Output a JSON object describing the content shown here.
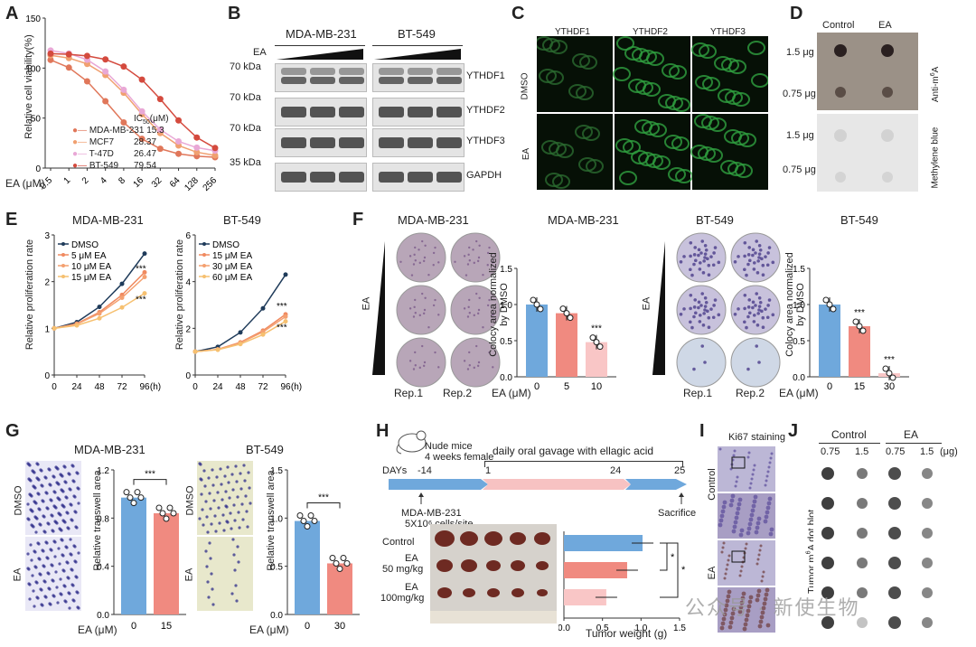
{
  "panels": {
    "A": {
      "label": "A",
      "ylabel": "Relative cell viability(%)",
      "xlabel": "EA (μM)",
      "xticks": [
        "0.5",
        "1",
        "2",
        "4",
        "8",
        "16",
        "32",
        "64",
        "128",
        "256"
      ],
      "yticks": [
        "0",
        "50",
        "100",
        "150"
      ],
      "ic50_header": "IC50(μM)",
      "legend": [
        {
          "name": "MDA-MB-231",
          "value": "15.3",
          "color": "#e0775a"
        },
        {
          "name": "MCF7",
          "value": "28.37",
          "color": "#f0a070"
        },
        {
          "name": "T-47D",
          "value": "26.47",
          "color": "#e9a8d6"
        },
        {
          "name": "BT-549",
          "value": "79.54",
          "color": "#d44a3e"
        }
      ]
    },
    "B": {
      "label": "B",
      "cell_lines": [
        "MDA-MB-231",
        "BT-549"
      ],
      "ea_label": "EA",
      "markers": [
        "70 kDa",
        "70 kDa",
        "70 kDa",
        "35 kDa"
      ],
      "proteins": [
        "YTHDF1",
        "YTHDF2",
        "YTHDF3",
        "GAPDH"
      ]
    },
    "C": {
      "label": "C",
      "columns": [
        "YTHDF1",
        "YTHDF2",
        "YTHDF3"
      ],
      "rows": [
        "DMSO",
        "EA"
      ]
    },
    "D": {
      "label": "D",
      "columns": [
        "Control",
        "EA"
      ],
      "amounts": [
        "1.5 μg",
        "0.75 μg",
        "1.5 μg",
        "0.75 μg"
      ],
      "side_labels": [
        "Anti-m6A",
        "Methylene blue"
      ]
    },
    "E": {
      "label": "E",
      "ylabel": "Relative proliferation rate",
      "xticks": [
        "0",
        "24",
        "48",
        "72",
        "96"
      ],
      "xunit": "(h)",
      "sig": "***",
      "charts": [
        {
          "title": "MDA-MB-231",
          "yticks": [
            "0",
            "1",
            "2",
            "3"
          ],
          "legend": [
            "DMSO",
            "5 μM EA",
            "10 μM EA",
            "15 μM EA"
          ]
        },
        {
          "title": "BT-549",
          "yticks": [
            "0",
            "2",
            "4",
            "6"
          ],
          "legend": [
            "DMSO",
            "15 μM EA",
            "30 μM EA",
            "60 μM EA"
          ]
        }
      ]
    },
    "F": {
      "label": "F",
      "titles": [
        "MDA-MB-231",
        "MDA-MB-231",
        "BT-549",
        "BT-549"
      ],
      "ea_label": "EA",
      "reps": [
        "Rep.1",
        "Rep.2"
      ],
      "ylabel": "Colocy area normalized by DMSO",
      "xlabel": "EA (μM)",
      "yticks": [
        "0.0",
        "0.5",
        "1.0",
        "1.5"
      ],
      "sig": "***",
      "bars_left": {
        "doses": [
          "0",
          "5",
          "10"
        ],
        "values": [
          1.0,
          0.88,
          0.48
        ]
      },
      "bars_right": {
        "doses": [
          "0",
          "15",
          "30"
        ],
        "values": [
          1.0,
          0.7,
          0.05
        ]
      }
    },
    "G": {
      "label": "G",
      "titles": [
        "MDA-MB-231",
        "BT-549"
      ],
      "rows": [
        "DMSO",
        "EA"
      ],
      "ylabel": "Relative transwell area",
      "xlabel": "EA (μM)",
      "sig": "***",
      "left": {
        "doses": [
          "0",
          "15"
        ],
        "values": [
          0.97,
          0.84
        ],
        "yticks": [
          "0.0",
          "0.4",
          "0.8",
          "1.2"
        ]
      },
      "right": {
        "doses": [
          "0",
          "30"
        ],
        "values": [
          0.97,
          0.53
        ],
        "yticks": [
          "0.0",
          "0.5",
          "1.0",
          "1.5"
        ]
      }
    },
    "H": {
      "label": "H",
      "mouse_text_1": "Nude mice",
      "mouse_text_2": "4 weeks female",
      "gavage": "daily oral gavage with ellagic acid",
      "days_label": "DAYs",
      "days": [
        "-14",
        "1",
        "24",
        "25"
      ],
      "inject_1": "MDA-MB-231",
      "inject_2": "5X10⁶ cells/site",
      "sacrifice": "Sacrifice",
      "groups": [
        "Control",
        "EA",
        "50 mg/kg",
        "EA",
        "100mg/kg"
      ],
      "weight_label": "Tumor weight (g)",
      "weight_ticks": [
        "0.0",
        "0.5",
        "1.0",
        "1.5"
      ],
      "weights": [
        1.02,
        0.82,
        0.55
      ],
      "sig": "*"
    },
    "I": {
      "label": "I",
      "title": "Ki67 staining",
      "rows": [
        "Control",
        "EA"
      ]
    },
    "J": {
      "label": "J",
      "groups": [
        "Control",
        "EA"
      ],
      "amounts": [
        "0.75",
        "1.5",
        "0.75",
        "1.5"
      ],
      "unit": "(μg)",
      "side": "Tumor m6A dot blot"
    }
  },
  "watermark": "公众号 · 新使生物",
  "colors": {
    "blue": "#6fa8dc",
    "salmon": "#f08a80",
    "pink": "#f9c6c6",
    "dmso": "#1f3b5a"
  }
}
